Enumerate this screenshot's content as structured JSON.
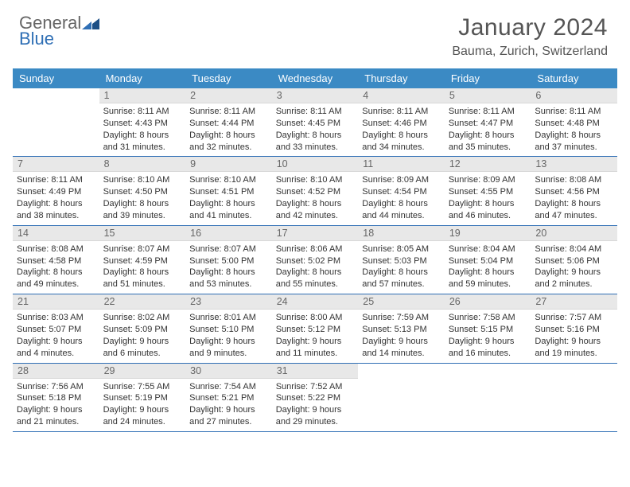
{
  "brand": {
    "part1": "General",
    "part2": "Blue"
  },
  "title": "January 2024",
  "location": "Bauma, Zurich, Switzerland",
  "colors": {
    "header_bg": "#3b8ac4",
    "header_text": "#ffffff",
    "rule": "#2f6fb5",
    "daynum_bg": "#e8e8e8",
    "text": "#333333",
    "muted": "#666666",
    "background": "#ffffff"
  },
  "dow": [
    "Sunday",
    "Monday",
    "Tuesday",
    "Wednesday",
    "Thursday",
    "Friday",
    "Saturday"
  ],
  "days": [
    {
      "n": "1",
      "sr": "8:11 AM",
      "ss": "4:43 PM",
      "dl": "8 hours and 31 minutes."
    },
    {
      "n": "2",
      "sr": "8:11 AM",
      "ss": "4:44 PM",
      "dl": "8 hours and 32 minutes."
    },
    {
      "n": "3",
      "sr": "8:11 AM",
      "ss": "4:45 PM",
      "dl": "8 hours and 33 minutes."
    },
    {
      "n": "4",
      "sr": "8:11 AM",
      "ss": "4:46 PM",
      "dl": "8 hours and 34 minutes."
    },
    {
      "n": "5",
      "sr": "8:11 AM",
      "ss": "4:47 PM",
      "dl": "8 hours and 35 minutes."
    },
    {
      "n": "6",
      "sr": "8:11 AM",
      "ss": "4:48 PM",
      "dl": "8 hours and 37 minutes."
    },
    {
      "n": "7",
      "sr": "8:11 AM",
      "ss": "4:49 PM",
      "dl": "8 hours and 38 minutes."
    },
    {
      "n": "8",
      "sr": "8:10 AM",
      "ss": "4:50 PM",
      "dl": "8 hours and 39 minutes."
    },
    {
      "n": "9",
      "sr": "8:10 AM",
      "ss": "4:51 PM",
      "dl": "8 hours and 41 minutes."
    },
    {
      "n": "10",
      "sr": "8:10 AM",
      "ss": "4:52 PM",
      "dl": "8 hours and 42 minutes."
    },
    {
      "n": "11",
      "sr": "8:09 AM",
      "ss": "4:54 PM",
      "dl": "8 hours and 44 minutes."
    },
    {
      "n": "12",
      "sr": "8:09 AM",
      "ss": "4:55 PM",
      "dl": "8 hours and 46 minutes."
    },
    {
      "n": "13",
      "sr": "8:08 AM",
      "ss": "4:56 PM",
      "dl": "8 hours and 47 minutes."
    },
    {
      "n": "14",
      "sr": "8:08 AM",
      "ss": "4:58 PM",
      "dl": "8 hours and 49 minutes."
    },
    {
      "n": "15",
      "sr": "8:07 AM",
      "ss": "4:59 PM",
      "dl": "8 hours and 51 minutes."
    },
    {
      "n": "16",
      "sr": "8:07 AM",
      "ss": "5:00 PM",
      "dl": "8 hours and 53 minutes."
    },
    {
      "n": "17",
      "sr": "8:06 AM",
      "ss": "5:02 PM",
      "dl": "8 hours and 55 minutes."
    },
    {
      "n": "18",
      "sr": "8:05 AM",
      "ss": "5:03 PM",
      "dl": "8 hours and 57 minutes."
    },
    {
      "n": "19",
      "sr": "8:04 AM",
      "ss": "5:04 PM",
      "dl": "8 hours and 59 minutes."
    },
    {
      "n": "20",
      "sr": "8:04 AM",
      "ss": "5:06 PM",
      "dl": "9 hours and 2 minutes."
    },
    {
      "n": "21",
      "sr": "8:03 AM",
      "ss": "5:07 PM",
      "dl": "9 hours and 4 minutes."
    },
    {
      "n": "22",
      "sr": "8:02 AM",
      "ss": "5:09 PM",
      "dl": "9 hours and 6 minutes."
    },
    {
      "n": "23",
      "sr": "8:01 AM",
      "ss": "5:10 PM",
      "dl": "9 hours and 9 minutes."
    },
    {
      "n": "24",
      "sr": "8:00 AM",
      "ss": "5:12 PM",
      "dl": "9 hours and 11 minutes."
    },
    {
      "n": "25",
      "sr": "7:59 AM",
      "ss": "5:13 PM",
      "dl": "9 hours and 14 minutes."
    },
    {
      "n": "26",
      "sr": "7:58 AM",
      "ss": "5:15 PM",
      "dl": "9 hours and 16 minutes."
    },
    {
      "n": "27",
      "sr": "7:57 AM",
      "ss": "5:16 PM",
      "dl": "9 hours and 19 minutes."
    },
    {
      "n": "28",
      "sr": "7:56 AM",
      "ss": "5:18 PM",
      "dl": "9 hours and 21 minutes."
    },
    {
      "n": "29",
      "sr": "7:55 AM",
      "ss": "5:19 PM",
      "dl": "9 hours and 24 minutes."
    },
    {
      "n": "30",
      "sr": "7:54 AM",
      "ss": "5:21 PM",
      "dl": "9 hours and 27 minutes."
    },
    {
      "n": "31",
      "sr": "7:52 AM",
      "ss": "5:22 PM",
      "dl": "9 hours and 29 minutes."
    }
  ],
  "labels": {
    "sunrise": "Sunrise:",
    "sunset": "Sunset:",
    "daylight": "Daylight:"
  },
  "layout": {
    "first_day_offset": 1,
    "weeks": 5,
    "cols": 7
  }
}
